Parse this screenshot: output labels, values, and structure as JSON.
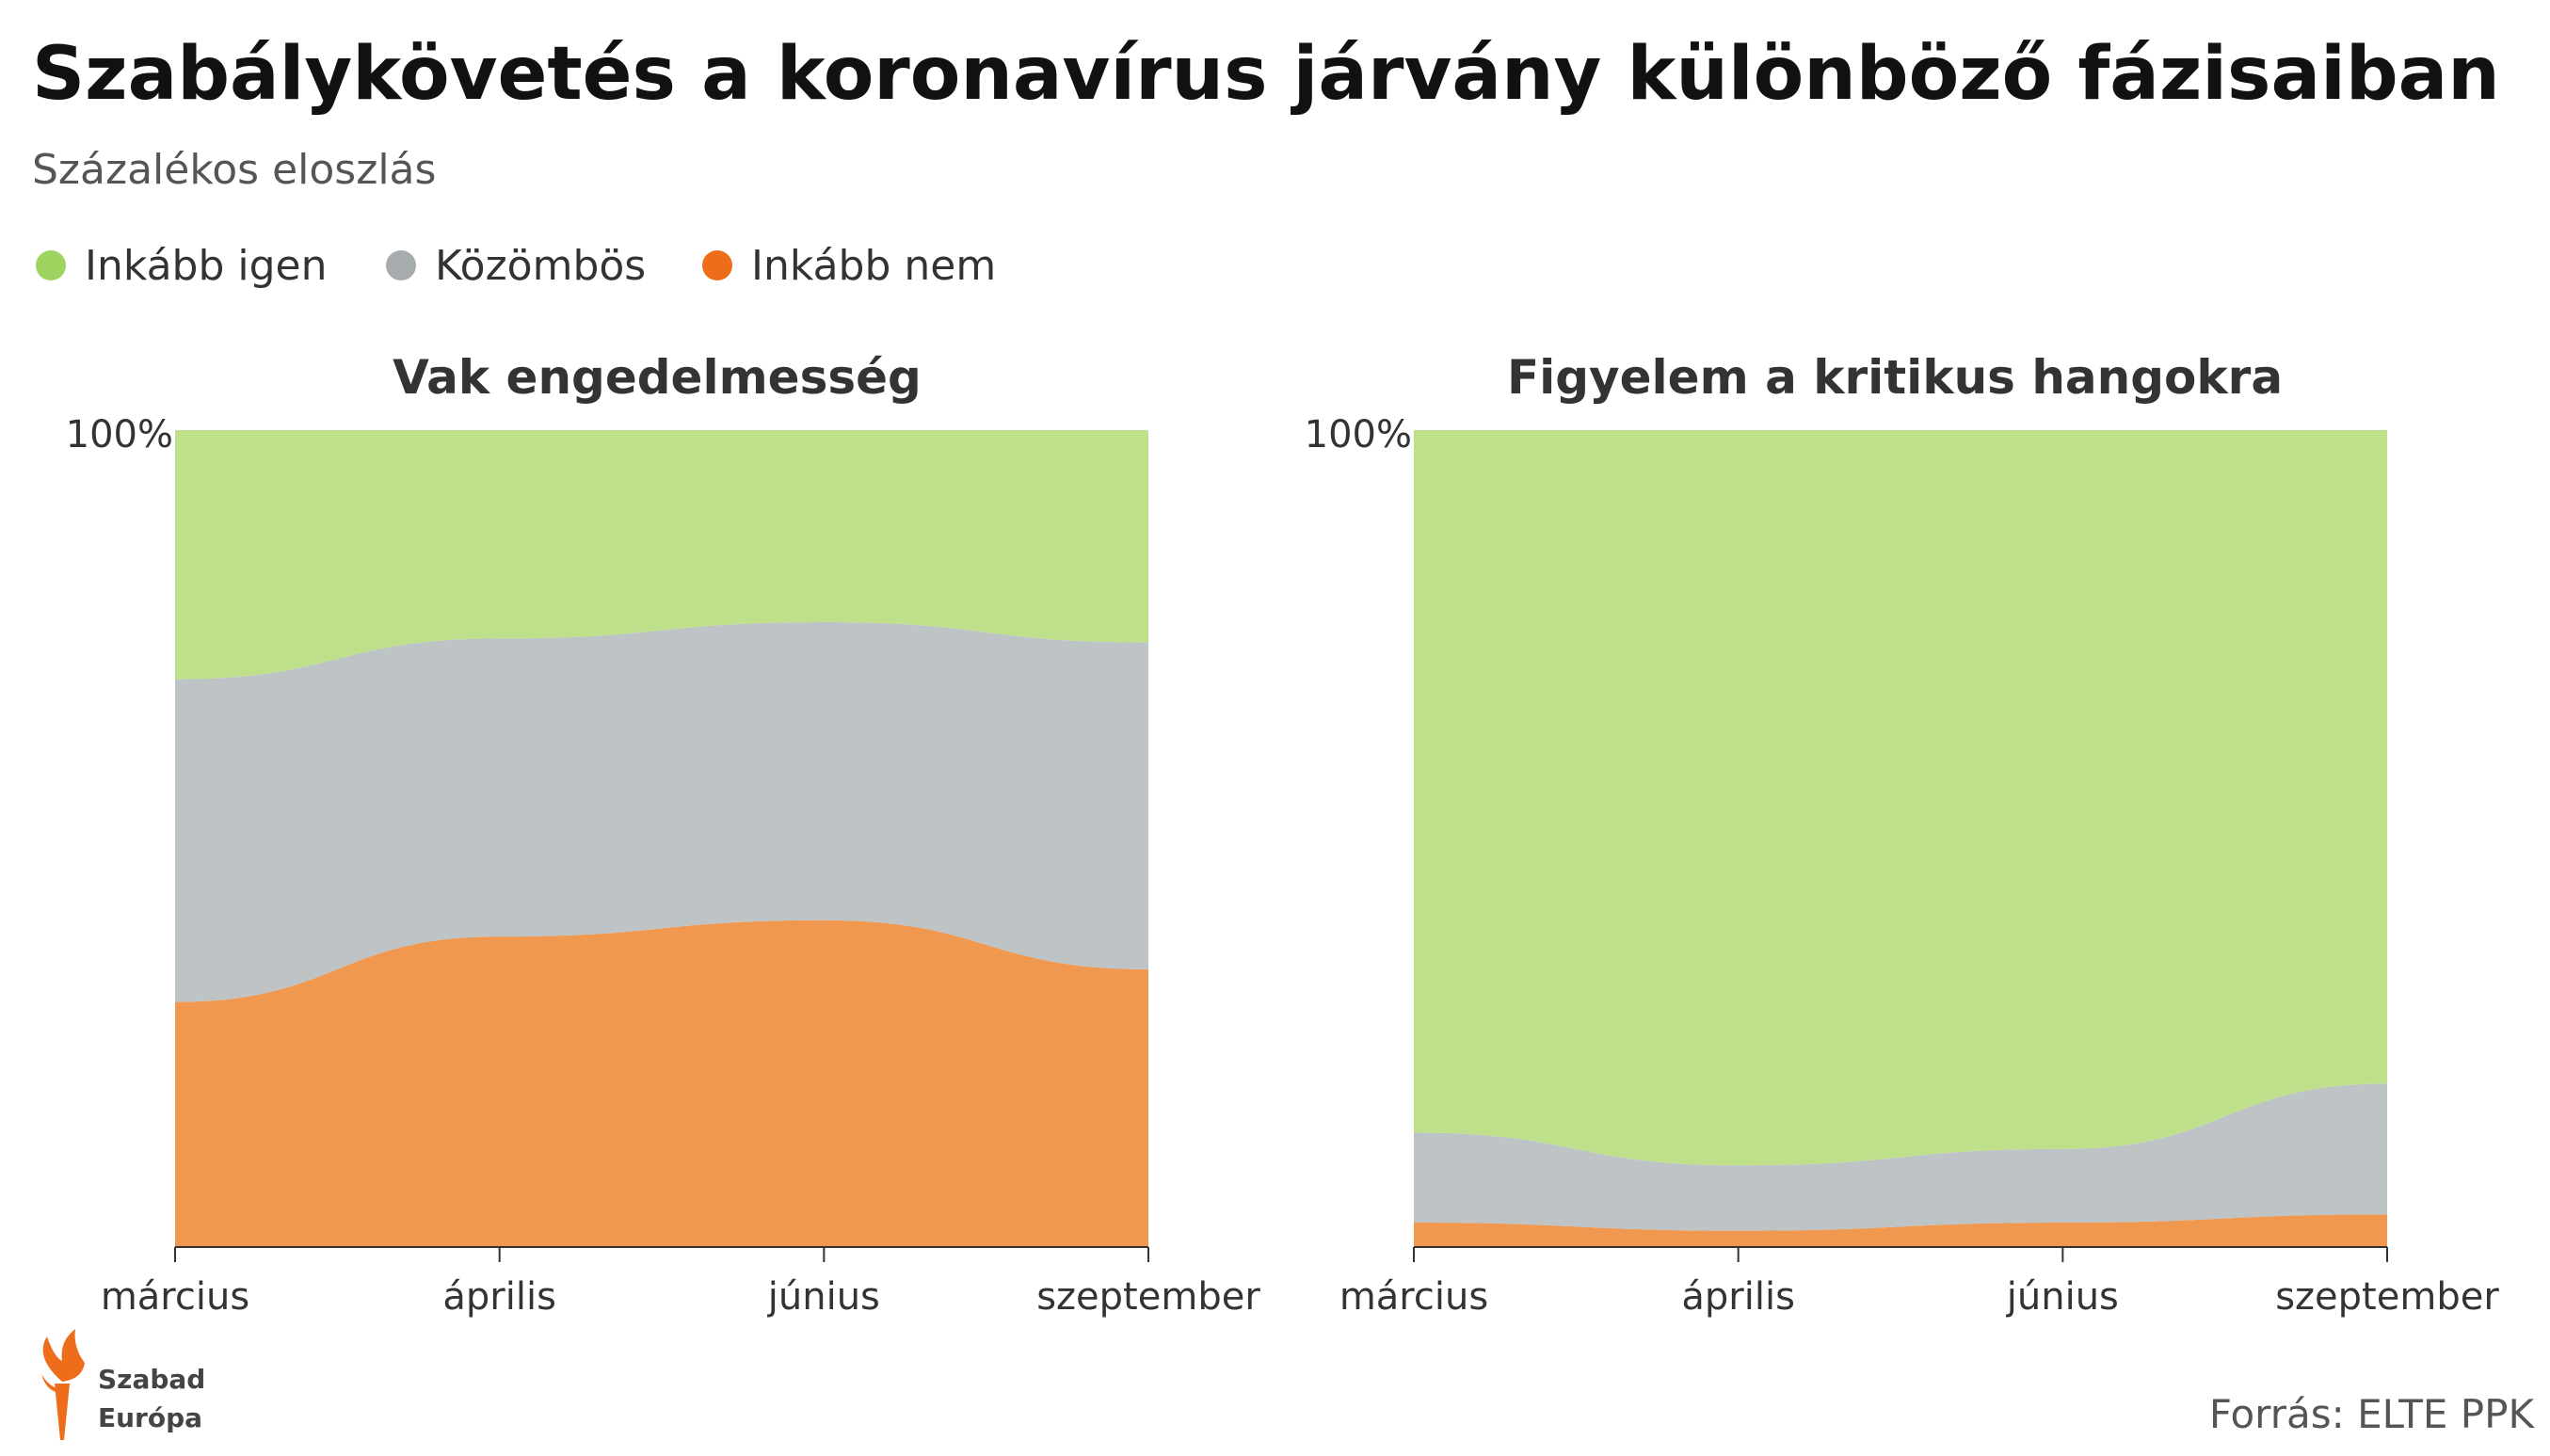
{
  "title": "Szabálykövetés a koronavírus járvány különböző fázisaiban",
  "subtitle": "Százalékos eloszlás",
  "source": "Forrás:  ELTE PPK",
  "logo": {
    "line1": "Szabad",
    "line2": "Európa"
  },
  "legend": [
    {
      "label": "Inkább igen",
      "color": "#bfe08b",
      "marker_color": "#9fd460"
    },
    {
      "label": "Közömbös",
      "color": "#bec3c6",
      "marker_color": "#a6abad"
    },
    {
      "label": "Inkább nem",
      "color": "#f0984f",
      "marker_color": "#ee6d1a"
    }
  ],
  "chart_data": [
    {
      "type": "area",
      "stacked": true,
      "title": "Vak engedelmesség",
      "categories": [
        "március",
        "április",
        "június",
        "szeptember"
      ],
      "ylim": [
        0,
        100
      ],
      "y_tick_label": "100%",
      "series": [
        {
          "name": "Inkább nem",
          "values": [
            30,
            38,
            40,
            34
          ]
        },
        {
          "name": "Közömbös",
          "values": [
            39.5,
            36.5,
            36.5,
            40
          ]
        },
        {
          "name": "Inkább igen",
          "values": [
            30.5,
            25.5,
            23.5,
            26
          ]
        }
      ]
    },
    {
      "type": "area",
      "stacked": true,
      "title": "Figyelem a kritikus hangokra",
      "categories": [
        "március",
        "április",
        "június",
        "szeptember"
      ],
      "ylim": [
        0,
        100
      ],
      "y_tick_label": "100%",
      "series": [
        {
          "name": "Inkább nem",
          "values": [
            3,
            2,
            3,
            4
          ]
        },
        {
          "name": "Közömbös",
          "values": [
            11,
            8,
            9,
            16
          ]
        },
        {
          "name": "Inkább igen",
          "values": [
            86,
            90,
            88,
            80
          ]
        }
      ]
    }
  ]
}
